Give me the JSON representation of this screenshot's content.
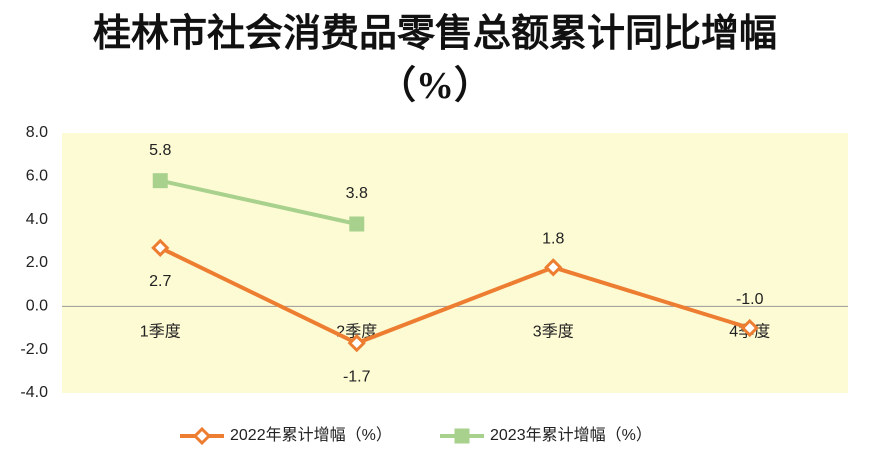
{
  "chart_data": {
    "type": "line",
    "title": "桂林市社会消费品零售总额累计同比增幅（%）",
    "categories": [
      "1季度",
      "2季度",
      "3季度",
      "4季度"
    ],
    "series": [
      {
        "name": "2022年累计增幅（%）",
        "color": "#ed7d31",
        "marker": "diamond",
        "values": [
          2.7,
          -1.7,
          1.8,
          -1.0
        ],
        "value_labels": [
          "2.7",
          "-1.7",
          "1.8",
          "-1.0"
        ]
      },
      {
        "name": "2023年累计增幅（%）",
        "color": "#a9d18e",
        "marker": "square",
        "values": [
          5.8,
          3.8,
          null,
          null
        ]
      }
    ],
    "ylim": [
      -4,
      8
    ],
    "yticks": [
      {
        "value": -4,
        "label": "-4.0"
      },
      {
        "value": -2,
        "label": "-2.0"
      },
      {
        "value": 0,
        "label": "0.0"
      },
      {
        "value": 2,
        "label": "2.0"
      },
      {
        "value": 4,
        "label": "4.0"
      },
      {
        "value": 6,
        "label": "6.0"
      },
      {
        "value": 8,
        "label": "8.0"
      }
    ],
    "plot_background": "#fdfbd3",
    "legend": "bottom"
  }
}
